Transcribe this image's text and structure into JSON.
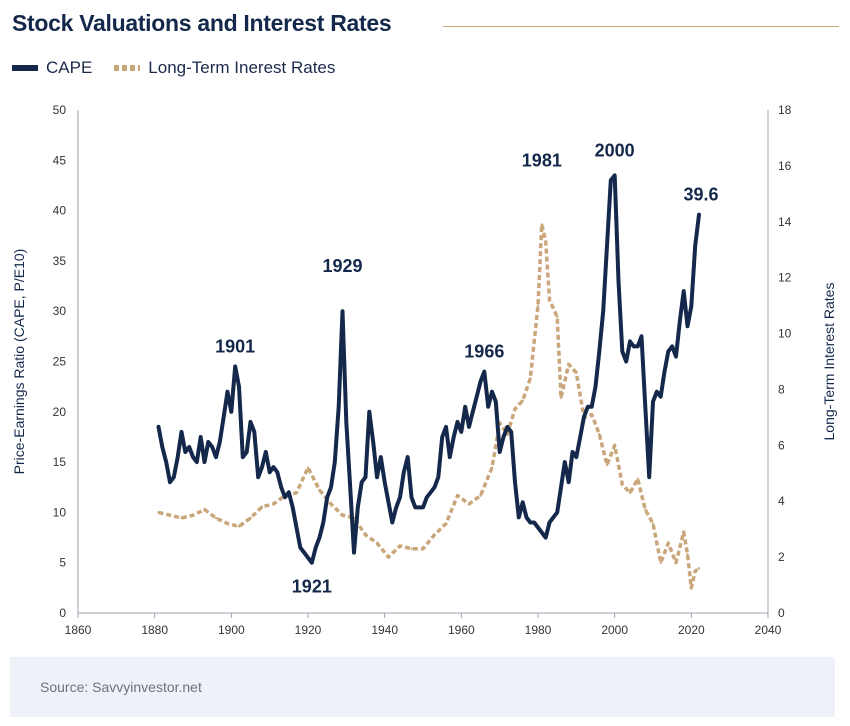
{
  "chart_data": {
    "type": "line",
    "title": "Stock Valuations and Interest Rates",
    "source": "Source: Savvyinvestor.net",
    "xlim": [
      1860,
      2040
    ],
    "x_ticks": [
      "1860",
      "1880",
      "1900",
      "1920",
      "1940",
      "1960",
      "1980",
      "2000",
      "2020",
      "2040"
    ],
    "ylabel_left": "Price-Earnings Ratio (CAPE, P/E10)",
    "ylim_left": [
      0,
      50
    ],
    "y_ticks_left": [
      "0",
      "5",
      "10",
      "15",
      "20",
      "25",
      "30",
      "35",
      "40",
      "45",
      "50"
    ],
    "ylabel_right": "Long-Term Interest Rates",
    "ylim_right": [
      0,
      18
    ],
    "y_ticks_right": [
      "0",
      "2",
      "4",
      "6",
      "8",
      "10",
      "12",
      "14",
      "16",
      "18"
    ],
    "legend_position": "top-left",
    "grid": false,
    "colors": {
      "cape": "#14284b",
      "rates": "#c9a77a"
    },
    "series": [
      {
        "name": "CAPE",
        "axis": "left",
        "style": "solid",
        "points": [
          [
            1881,
            18.5
          ],
          [
            1882,
            16.5
          ],
          [
            1883,
            15.0
          ],
          [
            1884,
            13.0
          ],
          [
            1885,
            13.5
          ],
          [
            1886,
            15.5
          ],
          [
            1887,
            18.0
          ],
          [
            1888,
            16.0
          ],
          [
            1889,
            16.5
          ],
          [
            1890,
            15.5
          ],
          [
            1891,
            15.0
          ],
          [
            1892,
            17.5
          ],
          [
            1893,
            15.0
          ],
          [
            1894,
            17.0
          ],
          [
            1895,
            16.5
          ],
          [
            1896,
            15.5
          ],
          [
            1897,
            17.0
          ],
          [
            1898,
            19.5
          ],
          [
            1899,
            22.0
          ],
          [
            1900,
            20.0
          ],
          [
            1901,
            24.5
          ],
          [
            1902,
            22.5
          ],
          [
            1903,
            15.5
          ],
          [
            1904,
            16.0
          ],
          [
            1905,
            19.0
          ],
          [
            1906,
            18.0
          ],
          [
            1907,
            13.5
          ],
          [
            1908,
            14.5
          ],
          [
            1909,
            16.0
          ],
          [
            1910,
            14.0
          ],
          [
            1911,
            14.5
          ],
          [
            1912,
            14.0
          ],
          [
            1913,
            12.5
          ],
          [
            1914,
            11.5
          ],
          [
            1915,
            12.0
          ],
          [
            1916,
            10.5
          ],
          [
            1917,
            8.5
          ],
          [
            1918,
            6.5
          ],
          [
            1919,
            6.0
          ],
          [
            1920,
            5.5
          ],
          [
            1921,
            5.0
          ],
          [
            1922,
            6.5
          ],
          [
            1923,
            7.5
          ],
          [
            1924,
            9.0
          ],
          [
            1925,
            11.5
          ],
          [
            1926,
            12.5
          ],
          [
            1927,
            15.0
          ],
          [
            1928,
            20.5
          ],
          [
            1929,
            30.0
          ],
          [
            1930,
            19.0
          ],
          [
            1931,
            12.5
          ],
          [
            1932,
            6.0
          ],
          [
            1933,
            10.5
          ],
          [
            1934,
            13.0
          ],
          [
            1935,
            13.5
          ],
          [
            1936,
            20.0
          ],
          [
            1937,
            17.0
          ],
          [
            1938,
            13.5
          ],
          [
            1939,
            15.5
          ],
          [
            1940,
            13.0
          ],
          [
            1941,
            11.0
          ],
          [
            1942,
            9.0
          ],
          [
            1943,
            10.5
          ],
          [
            1944,
            11.5
          ],
          [
            1945,
            14.0
          ],
          [
            1946,
            15.5
          ],
          [
            1947,
            11.5
          ],
          [
            1948,
            10.5
          ],
          [
            1949,
            10.5
          ],
          [
            1950,
            10.5
          ],
          [
            1951,
            11.5
          ],
          [
            1952,
            12.0
          ],
          [
            1953,
            12.5
          ],
          [
            1954,
            13.5
          ],
          [
            1955,
            17.5
          ],
          [
            1956,
            18.5
          ],
          [
            1957,
            15.5
          ],
          [
            1958,
            17.5
          ],
          [
            1959,
            19.0
          ],
          [
            1960,
            18.0
          ],
          [
            1961,
            20.5
          ],
          [
            1962,
            18.5
          ],
          [
            1963,
            20.0
          ],
          [
            1964,
            21.5
          ],
          [
            1965,
            23.0
          ],
          [
            1966,
            24.0
          ],
          [
            1967,
            20.5
          ],
          [
            1968,
            22.0
          ],
          [
            1969,
            21.0
          ],
          [
            1970,
            16.0
          ],
          [
            1971,
            17.5
          ],
          [
            1972,
            18.5
          ],
          [
            1973,
            18.0
          ],
          [
            1974,
            13.0
          ],
          [
            1975,
            9.5
          ],
          [
            1976,
            11.0
          ],
          [
            1977,
            9.5
          ],
          [
            1978,
            9.0
          ],
          [
            1979,
            9.0
          ],
          [
            1980,
            8.5
          ],
          [
            1981,
            8.0
          ],
          [
            1982,
            7.5
          ],
          [
            1983,
            9.0
          ],
          [
            1984,
            9.5
          ],
          [
            1985,
            10.0
          ],
          [
            1986,
            12.5
          ],
          [
            1987,
            15.0
          ],
          [
            1988,
            13.0
          ],
          [
            1989,
            16.0
          ],
          [
            1990,
            15.5
          ],
          [
            1991,
            17.5
          ],
          [
            1992,
            19.5
          ],
          [
            1993,
            20.5
          ],
          [
            1994,
            20.5
          ],
          [
            1995,
            22.5
          ],
          [
            1996,
            26.0
          ],
          [
            1997,
            30.0
          ],
          [
            1998,
            36.5
          ],
          [
            1999,
            43.0
          ],
          [
            2000,
            43.5
          ],
          [
            2001,
            33.0
          ],
          [
            2002,
            26.0
          ],
          [
            2003,
            25.0
          ],
          [
            2004,
            27.0
          ],
          [
            2005,
            26.5
          ],
          [
            2006,
            26.5
          ],
          [
            2007,
            27.5
          ],
          [
            2008,
            20.5
          ],
          [
            2009,
            13.5
          ],
          [
            2010,
            21.0
          ],
          [
            2011,
            22.0
          ],
          [
            2012,
            21.5
          ],
          [
            2013,
            24.0
          ],
          [
            2014,
            26.0
          ],
          [
            2015,
            26.5
          ],
          [
            2016,
            25.5
          ],
          [
            2017,
            29.0
          ],
          [
            2018,
            32.0
          ],
          [
            2019,
            28.5
          ],
          [
            2020,
            30.5
          ],
          [
            2021,
            36.5
          ],
          [
            2022,
            39.6
          ]
        ]
      },
      {
        "name": "Long-Term Inerest Rates",
        "axis": "right",
        "style": "dashed",
        "points": [
          [
            1881,
            3.6
          ],
          [
            1884,
            3.5
          ],
          [
            1887,
            3.4
          ],
          [
            1890,
            3.5
          ],
          [
            1893,
            3.7
          ],
          [
            1896,
            3.4
          ],
          [
            1899,
            3.2
          ],
          [
            1902,
            3.1
          ],
          [
            1905,
            3.4
          ],
          [
            1908,
            3.8
          ],
          [
            1911,
            3.9
          ],
          [
            1914,
            4.2
          ],
          [
            1917,
            4.3
          ],
          [
            1920,
            5.2
          ],
          [
            1923,
            4.4
          ],
          [
            1926,
            3.9
          ],
          [
            1929,
            3.5
          ],
          [
            1932,
            3.4
          ],
          [
            1935,
            2.8
          ],
          [
            1938,
            2.5
          ],
          [
            1941,
            2.0
          ],
          [
            1944,
            2.4
          ],
          [
            1947,
            2.3
          ],
          [
            1950,
            2.3
          ],
          [
            1953,
            2.8
          ],
          [
            1956,
            3.2
          ],
          [
            1959,
            4.2
          ],
          [
            1962,
            3.9
          ],
          [
            1965,
            4.2
          ],
          [
            1968,
            5.2
          ],
          [
            1970,
            6.8
          ],
          [
            1972,
            6.4
          ],
          [
            1974,
            7.3
          ],
          [
            1976,
            7.6
          ],
          [
            1978,
            8.4
          ],
          [
            1980,
            11.0
          ],
          [
            1981,
            13.9
          ],
          [
            1982,
            13.3
          ],
          [
            1983,
            11.2
          ],
          [
            1985,
            10.6
          ],
          [
            1986,
            7.7
          ],
          [
            1988,
            8.9
          ],
          [
            1990,
            8.6
          ],
          [
            1992,
            7.0
          ],
          [
            1994,
            7.1
          ],
          [
            1996,
            6.4
          ],
          [
            1998,
            5.3
          ],
          [
            2000,
            6.0
          ],
          [
            2002,
            4.6
          ],
          [
            2004,
            4.3
          ],
          [
            2006,
            4.8
          ],
          [
            2008,
            3.7
          ],
          [
            2010,
            3.2
          ],
          [
            2012,
            1.8
          ],
          [
            2014,
            2.5
          ],
          [
            2016,
            1.8
          ],
          [
            2018,
            2.9
          ],
          [
            2019,
            2.1
          ],
          [
            2020,
            0.9
          ],
          [
            2021,
            1.5
          ],
          [
            2022,
            1.6
          ]
        ]
      }
    ],
    "annotations": [
      {
        "text": "1901",
        "x": 1901,
        "y": 24.5
      },
      {
        "text": "1921",
        "x": 1921,
        "y": 5.0
      },
      {
        "text": "1929",
        "x": 1929,
        "y": 32.5
      },
      {
        "text": "1966",
        "x": 1966,
        "y": 24.0
      },
      {
        "text": "1981",
        "x": 1981,
        "y": 43.0
      },
      {
        "text": "2000",
        "x": 2000,
        "y": 44.0
      },
      {
        "text": "39.6",
        "x": 2022,
        "y": 39.6
      }
    ]
  }
}
